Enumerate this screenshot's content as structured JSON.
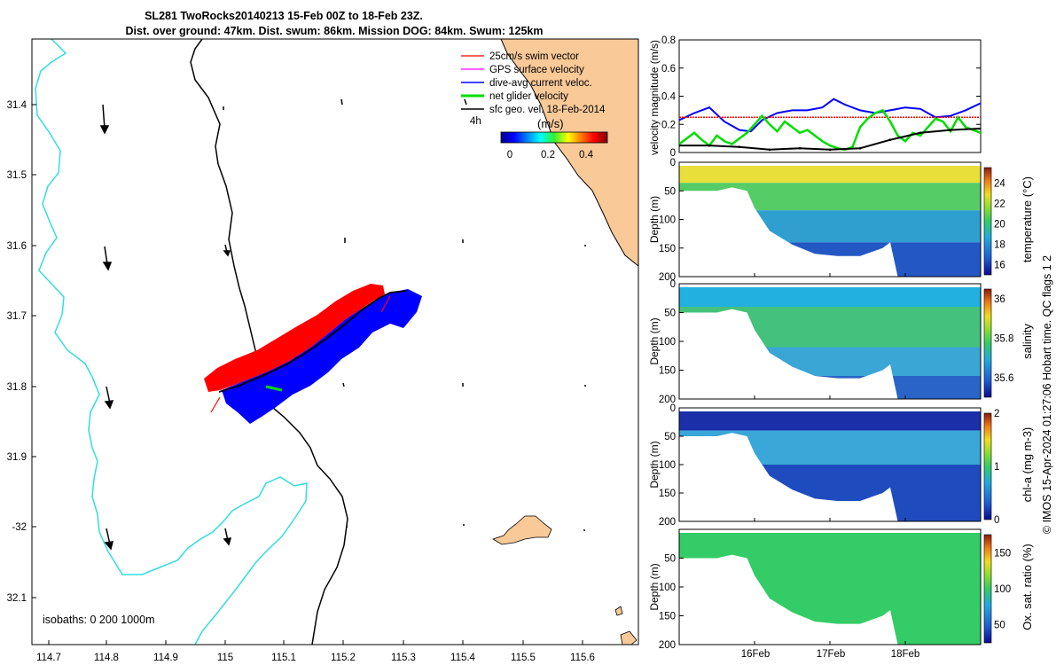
{
  "title": {
    "line1": "SL281 TwoRocks20140213 15-Feb 00Z to 18-Feb 23Z.",
    "line2": "Dist. over ground: 47km. Dist. swum: 86km. Mission DOG: 84km. Swum: 125km"
  },
  "map": {
    "lon_ticks": [
      "114.7",
      "114.8",
      "114.9",
      "115",
      "115.1",
      "115.2",
      "115.3",
      "115.4",
      "115.5",
      "115.6"
    ],
    "lat_ticks": [
      "31.4",
      "31.5",
      "31.6",
      "31.7",
      "31.8",
      "31.9",
      "-32",
      "32.1"
    ],
    "isobath_label": "isobaths: 0   200  1000m",
    "legend": [
      {
        "label": "25cm/s swim vector",
        "color": "#ff0000"
      },
      {
        "label": "GPS surface velocity",
        "color": "#ff00ff"
      },
      {
        "label": "dive-avg current veloc.",
        "color": "#0000ff"
      },
      {
        "label": "net glider velocity",
        "color": "#00dd00"
      },
      {
        "label": "sfc geo. vel. 18-Feb-2014",
        "color": "#000000"
      }
    ],
    "time_step_label": "4h",
    "colorbar": {
      "unit": "(m/s)",
      "ticks": [
        "0",
        "0.2",
        "0.4"
      ]
    },
    "colors": {
      "land": "#f9c998",
      "coast_line": "#000000",
      "isobath_200": "#000000",
      "isobath_1000": "#33dddd",
      "track_red": "#ff0000",
      "track_blue": "#0000ff"
    }
  },
  "chart_data": [
    {
      "type": "line",
      "ylabel": "velocity magnitude (m/s)",
      "ylim": [
        0,
        0.8
      ],
      "yticks": [
        "0",
        "0.2",
        "0.4",
        "0.6",
        "0.8"
      ],
      "xlim": [
        15.0,
        19.0
      ],
      "series": [
        {
          "color": "#0000ff",
          "x": [
            15.0,
            15.2,
            15.4,
            15.6,
            15.8,
            15.95,
            16.1,
            16.3,
            16.5,
            16.7,
            16.9,
            17.05,
            17.2,
            17.4,
            17.6,
            17.8,
            18.0,
            18.2,
            18.4,
            18.6,
            18.8,
            19.0
          ],
          "y": [
            0.23,
            0.28,
            0.32,
            0.22,
            0.16,
            0.15,
            0.23,
            0.28,
            0.3,
            0.3,
            0.32,
            0.38,
            0.34,
            0.3,
            0.28,
            0.3,
            0.32,
            0.31,
            0.25,
            0.26,
            0.3,
            0.35
          ]
        },
        {
          "color": "#ff0000",
          "x": [
            15.0,
            19.0
          ],
          "y": [
            0.25,
            0.25
          ]
        },
        {
          "color": "#00dd00",
          "x": [
            15.0,
            15.1,
            15.2,
            15.3,
            15.4,
            15.5,
            15.6,
            15.7,
            15.8,
            15.9,
            16.0,
            16.1,
            16.2,
            16.3,
            16.4,
            16.5,
            16.6,
            16.7,
            16.8,
            16.9,
            17.0,
            17.1,
            17.2,
            17.3,
            17.4,
            17.5,
            17.6,
            17.7,
            17.8,
            17.9,
            18.0,
            18.1,
            18.2,
            18.3,
            18.4,
            18.5,
            18.6,
            18.7,
            18.8,
            18.9,
            19.0
          ],
          "y": [
            0.06,
            0.1,
            0.14,
            0.09,
            0.05,
            0.12,
            0.08,
            0.06,
            0.1,
            0.14,
            0.2,
            0.26,
            0.2,
            0.15,
            0.22,
            0.18,
            0.14,
            0.16,
            0.12,
            0.08,
            0.05,
            0.03,
            0.02,
            0.04,
            0.18,
            0.24,
            0.28,
            0.3,
            0.22,
            0.12,
            0.08,
            0.14,
            0.12,
            0.18,
            0.24,
            0.22,
            0.15,
            0.25,
            0.18,
            0.16,
            0.14
          ]
        },
        {
          "color": "#000000",
          "x": [
            15.0,
            15.4,
            15.8,
            16.2,
            16.6,
            17.0,
            17.4,
            17.8,
            18.2,
            18.6,
            19.0
          ],
          "y": [
            0.05,
            0.05,
            0.04,
            0.02,
            0.03,
            0.02,
            0.03,
            0.09,
            0.14,
            0.16,
            0.17
          ]
        }
      ]
    },
    {
      "type": "heatmap",
      "ylabel": "Depth (m)",
      "variable": "temperature (°C)",
      "ylim": [
        0,
        200
      ],
      "yticks": [
        "0",
        "50",
        "100",
        "150",
        "200"
      ],
      "colorbar_ticks": [
        "16",
        "18",
        "20",
        "22",
        "24"
      ],
      "colorbar_range": [
        15,
        25.5
      ]
    },
    {
      "type": "heatmap",
      "ylabel": "Depth (m)",
      "variable": "salinity",
      "ylim": [
        0,
        200
      ],
      "yticks": [
        "0",
        "50",
        "100",
        "150",
        "200"
      ],
      "colorbar_ticks": [
        "35.6",
        "35.8",
        "36"
      ],
      "colorbar_range": [
        35.5,
        36.05
      ]
    },
    {
      "type": "heatmap",
      "ylabel": "Depth (m)",
      "variable": "chl-a (mg m-3)",
      "ylim": [
        0,
        200
      ],
      "yticks": [
        "0",
        "50",
        "100",
        "150",
        "200"
      ],
      "colorbar_ticks": [
        "0",
        "1",
        "2"
      ],
      "colorbar_range": [
        0,
        2
      ]
    },
    {
      "type": "heatmap",
      "ylabel": "Depth (m)",
      "variable": "Ox. sat. ratio (%)",
      "ylim": [
        0,
        200
      ],
      "yticks": [
        "50",
        "100",
        "150",
        "200"
      ],
      "colorbar_ticks": [
        "50",
        "100",
        "150"
      ],
      "colorbar_range": [
        25,
        175
      ]
    }
  ],
  "x_time_ticks": [
    "16Feb",
    "17Feb",
    "18Feb"
  ],
  "side_label": "© IMOS 15-Apr-2024 01:27:06 Hobart time. QC flags 1  2"
}
